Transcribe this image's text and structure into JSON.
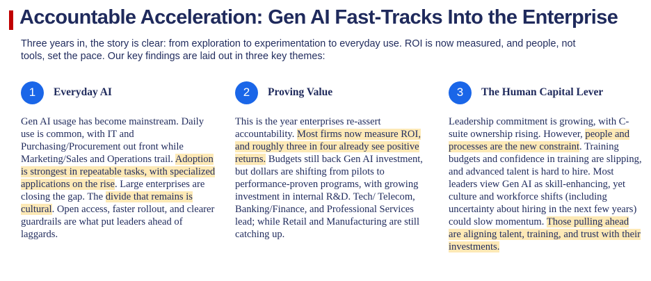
{
  "header": {
    "title": "Accountable Acceleration: Gen AI Fast-Tracks Into the Enterprise",
    "intro": "Three years in, the story is clear: from exploration to experimentation to everyday use. ROI is now measured, and people, not tools, set the pace. Our key findings are laid out in three key themes:"
  },
  "colors": {
    "title": "#1f2a5c",
    "accent_bar": "#c00000",
    "number_circle": "#1a66e8",
    "highlight": "#fde9b6"
  },
  "themes": [
    {
      "number": "1",
      "title": "Everyday AI",
      "segments": [
        {
          "text": "Gen AI usage has become mainstream. Daily use is common, with IT and Purchasing/Procurement out front while Marketing/Sales and Operations trail. ",
          "highlight": false
        },
        {
          "text": "Adoption is strongest in repeatable tasks, with specialized applications on the rise",
          "highlight": true
        },
        {
          "text": ". Large enterprises are closing the gap. The ",
          "highlight": false
        },
        {
          "text": "divide that remains is cultural",
          "highlight": true
        },
        {
          "text": ". Open access, faster rollout, and clearer guardrails are what put leaders ahead of laggards.",
          "highlight": false
        }
      ]
    },
    {
      "number": "2",
      "title": "Proving Value",
      "segments": [
        {
          "text": "This is the year enterprises re-assert accountability. ",
          "highlight": false
        },
        {
          "text": "Most firms now measure ROI, and roughly three in four already see positive returns.",
          "highlight": true
        },
        {
          "text": " Budgets still back Gen AI investment, but dollars are shifting from pilots to performance-proven programs, with growing investment in internal R&D. Tech/ Telecom, Banking/Finance, and Professional Services lead; while Retail and Manufacturing are still catching up.",
          "highlight": false
        }
      ]
    },
    {
      "number": "3",
      "title": "The Human Capital Lever",
      "segments": [
        {
          "text": "Leadership commitment is growing, with C-suite ownership rising. However, ",
          "highlight": false
        },
        {
          "text": "people and processes are the new constraint",
          "highlight": true
        },
        {
          "text": ". Training budgets and confidence in training are slipping, and advanced talent is hard to hire. Most leaders view Gen AI as skill-enhancing, yet culture and workforce shifts (including uncertainty about hiring in the next few years) could slow momentum. ",
          "highlight": false
        },
        {
          "text": "Those pulling ahead are aligning talent, training, and trust with their investments.",
          "highlight": true
        }
      ]
    }
  ]
}
